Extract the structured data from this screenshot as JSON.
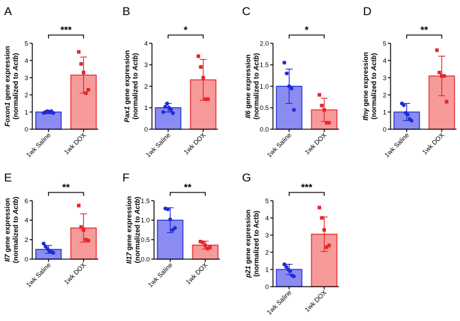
{
  "figure": {
    "width": 669,
    "height": 467
  },
  "colors": {
    "saline_fill": "#8a8cf2",
    "saline_edge": "#1f2bd6",
    "dox_fill": "#f69a9a",
    "dox_edge": "#e8262a",
    "axis": "#000000"
  },
  "chart_data": [
    {
      "panel": "A",
      "type": "bar",
      "ylabel_gene": "Foxon1",
      "ylabel_gene_italic": true,
      "ylabel_line1_rest": " gene expression",
      "ylabel_line2_pre": "(normalized to ",
      "ylabel_line2_ref": "Actb",
      "ylabel_line2_ref_italic": true,
      "ylabel_line2_post": ")",
      "ylim": [
        0,
        5
      ],
      "yticks": [
        "0",
        "1",
        "2",
        "3",
        "4",
        "5"
      ],
      "categories": [
        "1wk Saline",
        "1wk DOX"
      ],
      "means": [
        1.0,
        3.15
      ],
      "sd": [
        0.1,
        1.05
      ],
      "points": [
        [
          0.95,
          1.0,
          1.05,
          1.0,
          1.05,
          0.95
        ],
        [
          4.5,
          3.8,
          3.3,
          2.1,
          2.3
        ]
      ],
      "significance": "***"
    },
    {
      "panel": "B",
      "type": "bar",
      "ylabel_gene": "Pax1",
      "ylabel_gene_italic": true,
      "ylabel_line1_rest": " gene expression",
      "ylabel_line2_pre": "(normalized to ",
      "ylabel_line2_ref": "Actb",
      "ylabel_line2_ref_italic": true,
      "ylabel_line2_post": ")",
      "ylim": [
        0,
        4
      ],
      "yticks": [
        "0",
        "1",
        "2",
        "3",
        "4"
      ],
      "categories": [
        "1wk Saline",
        "1wk DOX"
      ],
      "means": [
        1.0,
        2.3
      ],
      "sd": [
        0.2,
        0.95
      ],
      "points": [
        [
          0.8,
          1.05,
          1.2,
          1.0,
          0.9,
          0.75
        ],
        [
          3.4,
          2.9,
          2.4,
          1.4,
          1.4
        ]
      ],
      "significance": "*"
    },
    {
      "panel": "C",
      "type": "bar",
      "ylabel_gene": "Il6",
      "ylabel_gene_italic": true,
      "ylabel_line1_rest": " gene expression",
      "ylabel_line2_pre": "(normalized to ",
      "ylabel_line2_ref": "Actb",
      "ylabel_line2_ref_italic": true,
      "ylabel_line2_post": ")",
      "ylim": [
        0,
        2
      ],
      "yticks": [
        "0.0",
        "0.5",
        "1.0",
        "1.5",
        "2.0"
      ],
      "categories": [
        "1wk Saline",
        "1wk DOX"
      ],
      "means": [
        1.0,
        0.45
      ],
      "sd": [
        0.4,
        0.27
      ],
      "points": [
        [
          1.55,
          1.3,
          1.0,
          0.95,
          0.45
        ],
        [
          0.8,
          0.55,
          0.45,
          0.15,
          0.15
        ]
      ],
      "significance": "*"
    },
    {
      "panel": "D",
      "type": "bar",
      "ylabel_gene": "Ifnγ",
      "ylabel_gene_italic": true,
      "ylabel_line1_rest": " gene expression",
      "ylabel_line2_pre": "(normalized to ",
      "ylabel_line2_ref": "Actb",
      "ylabel_line2_ref_italic": true,
      "ylabel_line2_post": ")",
      "ylim": [
        0,
        5
      ],
      "yticks": [
        "0",
        "1",
        "2",
        "3",
        "4",
        "5"
      ],
      "categories": [
        "1wk Saline",
        "1wk DOX"
      ],
      "means": [
        1.0,
        3.1
      ],
      "sd": [
        0.5,
        1.15
      ],
      "points": [
        [
          1.5,
          1.4,
          0.95,
          0.85,
          0.6,
          0.5
        ],
        [
          4.6,
          3.3,
          3.1,
          3.1,
          1.6
        ]
      ],
      "significance": "**"
    },
    {
      "panel": "E",
      "type": "bar",
      "ylabel_gene": "Il7",
      "ylabel_gene_italic": true,
      "ylabel_line1_rest": " gene expression",
      "ylabel_line2_pre": "(normalized to ",
      "ylabel_line2_ref": "Actb",
      "ylabel_line2_ref_italic": true,
      "ylabel_line2_post": ")",
      "ylim": [
        0,
        6
      ],
      "yticks": [
        "0",
        "2",
        "4",
        "6"
      ],
      "categories": [
        "1wk Saline",
        "1wk DOX"
      ],
      "means": [
        1.0,
        3.2
      ],
      "sd": [
        0.4,
        1.45
      ],
      "points": [
        [
          1.6,
          1.3,
          1.05,
          0.8,
          0.75,
          0.65
        ],
        [
          5.5,
          3.3,
          3.0,
          2.0,
          1.9
        ]
      ],
      "significance": "**"
    },
    {
      "panel": "F",
      "type": "bar",
      "ylabel_gene": "Il17",
      "ylabel_gene_italic": true,
      "ylabel_line1_rest": " gene expression",
      "ylabel_line2_pre": "(normalized to ",
      "ylabel_line2_ref": "Actb",
      "ylabel_line2_ref_italic": true,
      "ylabel_line2_post": ")",
      "ylim": [
        0,
        1.5
      ],
      "yticks": [
        "0.0",
        "0.5",
        "1.0",
        "1.5"
      ],
      "categories": [
        "1wk Saline",
        "1wk DOX"
      ],
      "means": [
        1.0,
        0.36
      ],
      "sd": [
        0.32,
        0.1
      ],
      "points": [
        [
          1.3,
          1.28,
          1.02,
          0.75,
          0.8
        ],
        [
          0.45,
          0.43,
          0.35,
          0.27,
          0.3
        ]
      ],
      "significance": "**"
    },
    {
      "panel": "G",
      "type": "bar",
      "ylabel_gene": "p21",
      "ylabel_gene_italic": true,
      "ylabel_line1_rest": " gene expression",
      "ylabel_line2_pre": "(normalized to Actb)",
      "ylabel_line2_ref": "",
      "ylabel_line2_ref_italic": false,
      "ylabel_line2_post": "",
      "ylim": [
        0,
        5
      ],
      "yticks": [
        "0",
        "1",
        "2",
        "3",
        "4",
        "5"
      ],
      "categories": [
        "1wk Saline",
        "1wk DOX"
      ],
      "means": [
        1.0,
        3.05
      ],
      "sd": [
        0.3,
        1.0
      ],
      "points": [
        [
          1.3,
          1.15,
          1.0,
          0.9,
          0.65,
          0.6
        ],
        [
          4.6,
          4.0,
          3.3,
          2.3,
          2.4
        ]
      ],
      "significance": "***"
    }
  ]
}
